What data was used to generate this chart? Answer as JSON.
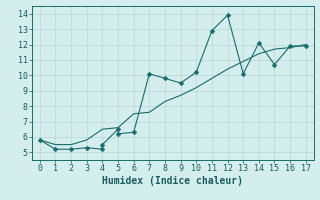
{
  "xlabel": "Humidex (Indice chaleur)",
  "xlim": [
    -0.5,
    17.5
  ],
  "ylim": [
    4.5,
    14.5
  ],
  "xticks": [
    0,
    1,
    2,
    3,
    4,
    5,
    6,
    7,
    8,
    9,
    10,
    11,
    12,
    13,
    14,
    15,
    16,
    17
  ],
  "yticks": [
    5,
    6,
    7,
    8,
    9,
    10,
    11,
    12,
    13,
    14
  ],
  "line1_x": [
    0,
    1,
    2,
    3,
    4,
    4,
    5,
    5,
    6,
    7,
    8,
    9,
    10,
    11,
    12,
    13,
    14,
    15,
    16,
    17
  ],
  "line1_y": [
    5.8,
    5.2,
    5.2,
    5.3,
    5.2,
    5.5,
    6.5,
    6.2,
    6.3,
    10.1,
    9.8,
    9.5,
    10.2,
    12.9,
    13.9,
    10.1,
    12.1,
    10.7,
    11.9,
    11.9
  ],
  "line2_x": [
    0,
    1,
    2,
    3,
    4,
    5,
    6,
    7,
    8,
    9,
    10,
    11,
    12,
    13,
    14,
    15,
    16,
    17
  ],
  "line2_y": [
    5.8,
    5.5,
    5.5,
    5.8,
    6.5,
    6.6,
    7.5,
    7.6,
    8.3,
    8.7,
    9.2,
    9.8,
    10.4,
    10.9,
    11.4,
    11.7,
    11.8,
    12.0
  ],
  "bg_color": "#d4eeee",
  "line_color": "#1a6b6b",
  "marker": "D",
  "marker_size": 2.5,
  "grid_color": "#b8d8d8",
  "font_color": "#1a5c5c",
  "tick_fontsize": 6,
  "xlabel_fontsize": 7
}
